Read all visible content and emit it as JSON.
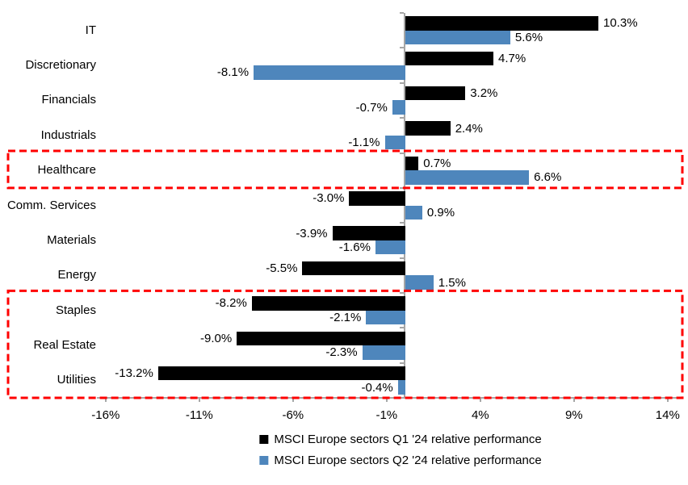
{
  "colors": {
    "series_q1": "#000000",
    "series_q2": "#4E86BC",
    "highlight_border": "#FF0000",
    "axis_line": "#A6A6A6",
    "text": "#000000",
    "background": "#FFFFFF"
  },
  "chart_data": {
    "type": "bar",
    "orientation": "horizontal",
    "title": "",
    "xlabel": "",
    "ylabel": "",
    "grid": false,
    "legend_position": "bottom",
    "categories": [
      "IT",
      "Discretionary",
      "Financials",
      "Industrials",
      "Healthcare",
      "Comm. Services",
      "Materials",
      "Energy",
      "Staples",
      "Real Estate",
      "Utilities"
    ],
    "series": [
      {
        "name": "MSCI Europe sectors Q1 '24 relative performance",
        "color": "#000000",
        "values": [
          10.3,
          4.7,
          3.2,
          2.4,
          0.7,
          -3.0,
          -3.9,
          -5.5,
          -8.2,
          -9.0,
          -13.2
        ],
        "labels": [
          "10.3%",
          "4.7%",
          "3.2%",
          "2.4%",
          "0.7%",
          "-3.0%",
          "-3.9%",
          "-5.5%",
          "-8.2%",
          "-9.0%",
          "-13.2%"
        ]
      },
      {
        "name": "MSCI Europe sectors Q2 '24 relative performance",
        "color": "#4E86BC",
        "values": [
          5.6,
          -8.1,
          -0.7,
          -1.1,
          6.6,
          0.9,
          -1.6,
          1.5,
          -2.1,
          -2.3,
          -0.4
        ],
        "labels": [
          "5.6%",
          "-8.1%",
          "-0.7%",
          "-1.1%",
          "6.6%",
          "0.9%",
          "-1.6%",
          "1.5%",
          "-2.1%",
          "-2.3%",
          "-0.4%"
        ]
      }
    ],
    "x_axis": {
      "tick_labels": [
        "-16%",
        "-11%",
        "-6%",
        "-1%",
        "4%",
        "9%",
        "14%"
      ],
      "tick_values": [
        -16,
        -11,
        -6,
        -1,
        4,
        9,
        14
      ],
      "range": [
        -16.5,
        14.8
      ]
    },
    "highlights": [
      {
        "rows": [
          "Healthcare"
        ],
        "start_row": 4,
        "end_row": 4,
        "style": "red-dashed-box"
      },
      {
        "rows": [
          "Staples",
          "Real Estate",
          "Utilities"
        ],
        "start_row": 8,
        "end_row": 10,
        "style": "red-dashed-box"
      }
    ]
  },
  "legend": {
    "items": [
      {
        "label": "MSCI Europe sectors Q1 '24 relative performance",
        "color": "#000000"
      },
      {
        "label": "MSCI Europe sectors Q2 '24 relative performance",
        "color": "#4E86BC"
      }
    ]
  }
}
